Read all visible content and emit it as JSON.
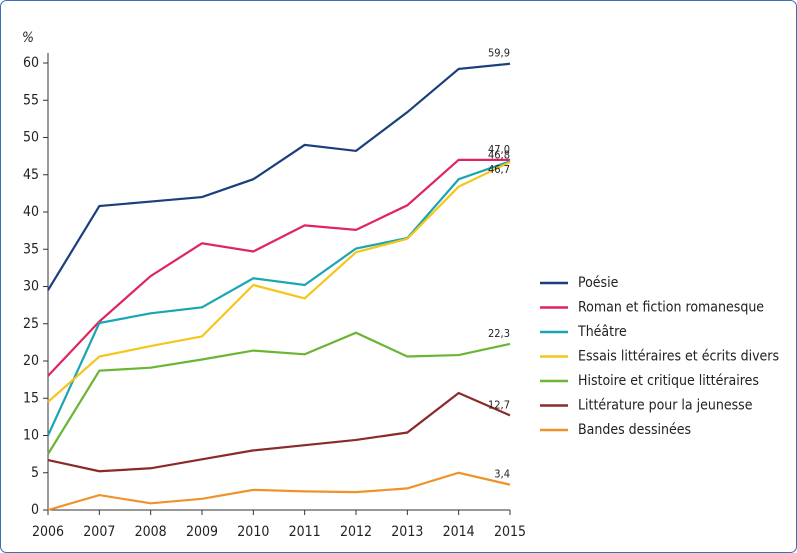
{
  "chart_data": {
    "type": "line",
    "ylabel": "%",
    "x": [
      2006,
      2007,
      2008,
      2009,
      2010,
      2011,
      2012,
      2013,
      2014,
      2015
    ],
    "xlim": [
      2006,
      2015
    ],
    "xticks": [
      2006,
      2007,
      2008,
      2009,
      2010,
      2011,
      2012,
      2013,
      2014,
      2015
    ],
    "ylim": [
      0,
      60
    ],
    "yticks": [
      0,
      5,
      10,
      15,
      20,
      25,
      30,
      35,
      40,
      45,
      50,
      55,
      60
    ],
    "grid": false,
    "legend": "right",
    "series": [
      {
        "name": "Poésie",
        "color": "#1a3f7a",
        "values": [
          29.5,
          40.8,
          41.4,
          42,
          44.4,
          49,
          48.2,
          53.4,
          59.2,
          59.9
        ],
        "value_labels": [
          null,
          null,
          null,
          null,
          null,
          null,
          null,
          null,
          null,
          "59,9"
        ]
      },
      {
        "name": "Roman et fiction romanesque",
        "color": "#e0245e",
        "values": [
          18,
          25.3,
          31.4,
          35.8,
          34.7,
          38.2,
          37.6,
          40.9,
          47,
          47.0
        ],
        "value_labels": [
          null,
          null,
          null,
          null,
          null,
          null,
          null,
          null,
          null,
          "47,0"
        ]
      },
      {
        "name": "Théâtre",
        "color": "#1aa5b5",
        "values": [
          10,
          25.1,
          26.4,
          27.2,
          31.1,
          30.2,
          35.1,
          36.5,
          44.4,
          46.8
        ],
        "value_labels": [
          null,
          null,
          null,
          null,
          null,
          null,
          null,
          null,
          null,
          "46,8"
        ]
      },
      {
        "name": "Essais littéraires et écrits divers",
        "color": "#f5c518",
        "values": [
          14.5,
          20.6,
          22,
          23.3,
          30.2,
          28.4,
          34.6,
          36.4,
          43.4,
          46.7
        ],
        "value_labels": [
          null,
          null,
          null,
          null,
          null,
          null,
          null,
          null,
          null,
          "46,7"
        ]
      },
      {
        "name": "Histoire et critique littéraires",
        "color": "#6ab534",
        "values": [
          7.5,
          18.7,
          19.1,
          20.2,
          21.4,
          20.9,
          23.8,
          20.6,
          20.8,
          22.3
        ],
        "value_labels": [
          null,
          null,
          null,
          null,
          null,
          null,
          null,
          null,
          null,
          "22,3"
        ]
      },
      {
        "name": "Littérature pour la jeunesse",
        "color": "#8b2a2a",
        "values": [
          6.7,
          5.2,
          5.6,
          6.8,
          8,
          8.7,
          9.4,
          10.4,
          15.7,
          12.7
        ],
        "value_labels": [
          null,
          null,
          null,
          null,
          null,
          null,
          null,
          null,
          null,
          "12,7"
        ]
      },
      {
        "name": "Bandes dessinées",
        "color": "#f0922b",
        "values": [
          0,
          2,
          0.9,
          1.5,
          2.7,
          2.5,
          2.4,
          2.9,
          5,
          3.4
        ],
        "value_labels": [
          null,
          null,
          null,
          null,
          null,
          null,
          null,
          null,
          null,
          "3,4"
        ]
      }
    ]
  }
}
